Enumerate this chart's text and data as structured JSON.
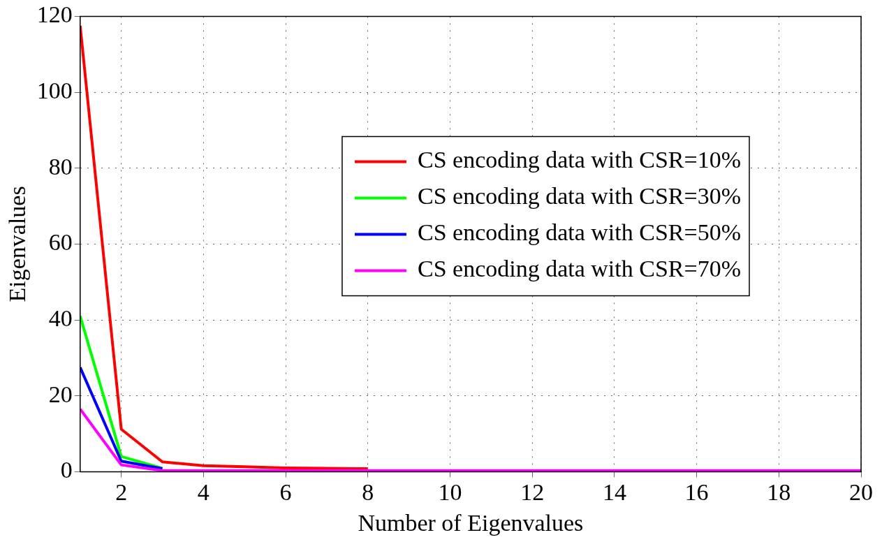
{
  "chart_data": {
    "type": "line",
    "xlabel": "Number of Eigenvalues",
    "ylabel": "Eigenvalues",
    "x": [
      1,
      2,
      3,
      4,
      5,
      6,
      7,
      8,
      9,
      10,
      11,
      12,
      13,
      14,
      15,
      16,
      17,
      18,
      19,
      20
    ],
    "xlim": [
      1,
      20
    ],
    "xticks": [
      2,
      4,
      6,
      8,
      10,
      12,
      14,
      16,
      18,
      20
    ],
    "ylim": [
      0,
      120
    ],
    "yticks": [
      0,
      20,
      40,
      60,
      80,
      100,
      120
    ],
    "grid": true,
    "legend": "right",
    "marker": "none",
    "line_style": "solid",
    "series": [
      {
        "name": "CS encoding data with CSR=10%",
        "color": "#ff0000",
        "values": [
          117.5,
          11.2,
          2.6,
          1.6,
          1.3,
          1.0,
          0.9,
          0.8,
          null,
          null,
          null,
          null,
          null,
          null,
          null,
          null,
          null,
          null,
          null,
          null
        ]
      },
      {
        "name": "CS encoding data with CSR=30%",
        "color": "#00ff00",
        "values": [
          41,
          4,
          0.9,
          null,
          null,
          null,
          null,
          null,
          null,
          null,
          null,
          null,
          null,
          null,
          null,
          null,
          null,
          null,
          null,
          null
        ]
      },
      {
        "name": "CS encoding data with CSR=50%",
        "color": "#0000ff",
        "values": [
          27.5,
          2.8,
          0.8,
          null,
          null,
          null,
          null,
          null,
          null,
          null,
          null,
          null,
          null,
          null,
          null,
          null,
          null,
          null,
          null,
          null
        ]
      },
      {
        "name": "CS encoding data with CSR=70%",
        "color": "#ff00ff",
        "values": [
          16.5,
          1.8,
          0.3,
          0.3,
          0.3,
          0.3,
          0.3,
          0.3,
          0.3,
          0.3,
          0.3,
          0.3,
          0.3,
          0.3,
          0.3,
          0.3,
          0.3,
          0.3,
          0.3,
          0.3
        ]
      }
    ]
  }
}
